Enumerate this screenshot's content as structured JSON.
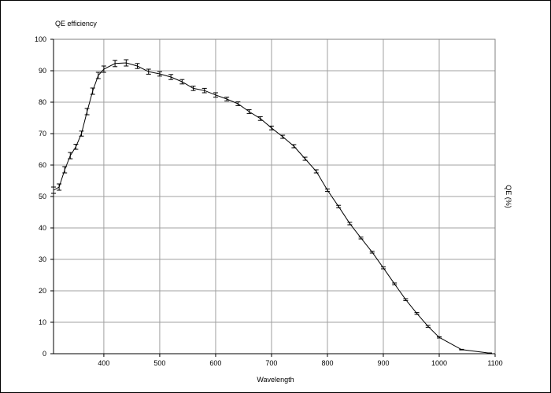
{
  "chart_data": {
    "type": "line",
    "title": "QE efficiency",
    "xlabel": "Wavelength",
    "ylabel_right": "QE (%)",
    "xlim": [
      310,
      1100
    ],
    "ylim": [
      0,
      100
    ],
    "xticks": [
      400,
      500,
      600,
      700,
      800,
      900,
      1000,
      1100
    ],
    "yticks": [
      0,
      10,
      20,
      30,
      40,
      50,
      60,
      70,
      80,
      90,
      100
    ],
    "grid": true,
    "error_bars": true,
    "x": [
      310,
      320,
      330,
      340,
      350,
      360,
      370,
      380,
      390,
      400,
      420,
      440,
      460,
      480,
      500,
      520,
      540,
      560,
      580,
      600,
      620,
      640,
      660,
      680,
      700,
      720,
      740,
      760,
      780,
      800,
      820,
      840,
      860,
      880,
      900,
      920,
      940,
      960,
      980,
      1000,
      1040,
      1090
    ],
    "y": [
      52,
      53,
      58.5,
      63,
      65.8,
      70,
      77,
      83.5,
      88.5,
      90.5,
      92.3,
      92.5,
      91.5,
      89.7,
      89,
      88,
      86.5,
      84.4,
      83.7,
      82.3,
      81,
      79.5,
      77,
      74.8,
      71.8,
      69,
      66,
      62,
      58,
      52,
      46.8,
      41.4,
      36.8,
      32.3,
      27.3,
      22.2,
      17.2,
      12.8,
      8.7,
      5.2,
      1.3,
      0.2
    ],
    "err": [
      1,
      1,
      1,
      1,
      0.8,
      0.8,
      1,
      1,
      1,
      1,
      1,
      1,
      0.8,
      0.8,
      0.7,
      0.8,
      0.7,
      0.7,
      0.7,
      0.7,
      0.6,
      0.6,
      0.6,
      0.6,
      0.6,
      0.5,
      0.5,
      0.5,
      0.5,
      0.4,
      0.4,
      0.4,
      0.3,
      0.3,
      0.3,
      0.3,
      0.3,
      0.3,
      0.3,
      0.2,
      0.1,
      0.05
    ]
  }
}
